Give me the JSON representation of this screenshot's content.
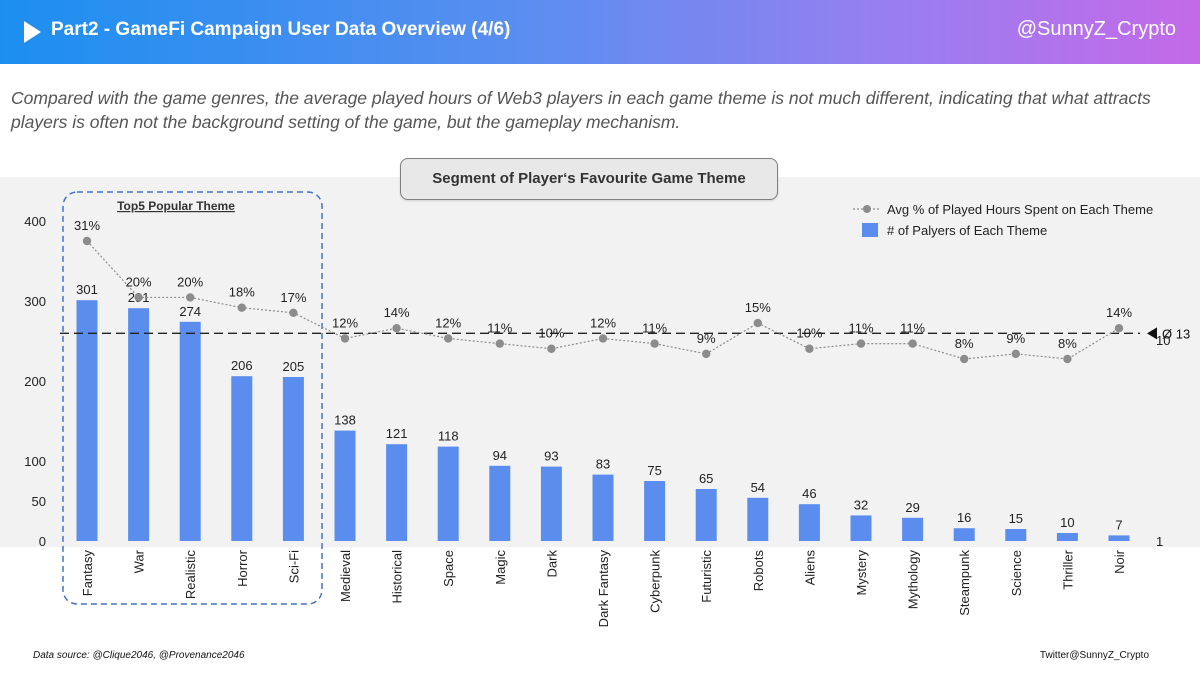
{
  "header": {
    "title": "Part2 - GameFi Campaign User Data Overview (4/6)",
    "handle": "@SunnyZ_Crypto"
  },
  "intro": "Compared with the game genres, the average played hours of Web3 players in each game theme is not much different, indicating that what attracts players is often not the background setting of the game, but the gameplay mechanism.",
  "footer": {
    "source": "Data source: @Clique2046, @Provenance2046",
    "credit": "Twitter@SunnyZ_Crypto"
  },
  "colors": {
    "bar": "#5b8def",
    "line": "#8c8c8c",
    "highlight_box": "#4472c4"
  },
  "chart_data": {
    "type": "bar",
    "title": "Segment of Player‘s Favourite Game Theme",
    "highlight_label": "Top5 Popular Theme",
    "categories": [
      "Fantasy",
      "War",
      "Realistic",
      "Horror",
      "Sci-Fi",
      "Medieval",
      "Historical",
      "Space",
      "Magic",
      "Dark",
      "Dark Fantasy",
      "Cyberpunk",
      "Futuristic",
      "Robots",
      "Aliens",
      "Mystery",
      "Mythology",
      "Steampunk",
      "Science",
      "Thriller",
      "Noir"
    ],
    "series": [
      {
        "name": "# of Palyers of Each Theme",
        "type": "bar",
        "axis": "left",
        "values": [
          301,
          291,
          274,
          206,
          205,
          138,
          121,
          118,
          94,
          93,
          83,
          75,
          65,
          54,
          46,
          32,
          29,
          16,
          15,
          10,
          7
        ]
      },
      {
        "name": "Avg % of Played Hours Spent on Each Theme",
        "type": "line",
        "axis": "right",
        "values": [
          31,
          20,
          20,
          18,
          17,
          12,
          14,
          12,
          11,
          10,
          12,
          11,
          9,
          15,
          10,
          11,
          11,
          8,
          9,
          8,
          14
        ],
        "labels": [
          "31%",
          "20%",
          "20%",
          "18%",
          "17%",
          "12%",
          "14%",
          "12%",
          "11%",
          "10%",
          "12%",
          "11%",
          "9%",
          "15%",
          "10%",
          "11%",
          "11%",
          "8%",
          "9%",
          "8%",
          "14%"
        ]
      }
    ],
    "left_axis": {
      "ticks": [
        0,
        50,
        100,
        200,
        300,
        400
      ],
      "tick_labels": [
        "0",
        "50",
        "100",
        "200",
        "300",
        "400"
      ]
    },
    "right_axis": {
      "tick_labels": [
        "1",
        "10"
      ],
      "average_value": 13,
      "average_label": "Ø 13"
    },
    "legend_position": "top-right"
  }
}
